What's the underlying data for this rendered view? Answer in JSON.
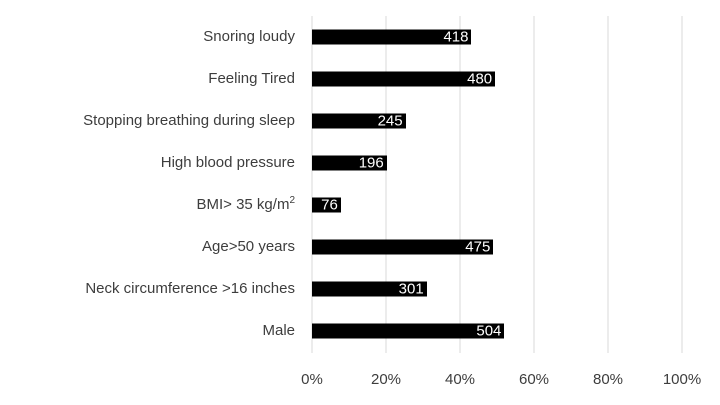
{
  "chart_data": {
    "type": "bar",
    "orientation": "horizontal",
    "title": "",
    "xlabel": "",
    "ylabel": "",
    "xlim": [
      0,
      100
    ],
    "grid": true,
    "legend": false,
    "x_ticks": [
      {
        "label": "0%",
        "value": 0
      },
      {
        "label": "20%",
        "value": 20
      },
      {
        "label": "40%",
        "value": 40
      },
      {
        "label": "60%",
        "value": 60
      },
      {
        "label": "80%",
        "value": 80
      },
      {
        "label": "100%",
        "value": 100
      }
    ],
    "rows": [
      {
        "label": "Snoring loudy",
        "label_sup": "",
        "value": "418",
        "percent": 43.1
      },
      {
        "label": "Feeling Tired",
        "label_sup": "",
        "value": "480",
        "percent": 49.5
      },
      {
        "label": "Stopping breathing during sleep",
        "label_sup": "",
        "value": "245",
        "percent": 25.3
      },
      {
        "label": "High blood pressure",
        "label_sup": "",
        "value": "196",
        "percent": 20.2
      },
      {
        "label": "BMI> 35 kg/m",
        "label_sup": "2",
        "value": "76",
        "percent": 7.8
      },
      {
        "label": "Age>50 years",
        "label_sup": "",
        "value": "475",
        "percent": 49.0
      },
      {
        "label": "Neck circumference >16 inches",
        "label_sup": "",
        "value": "301",
        "percent": 31.0
      },
      {
        "label": "Male",
        "label_sup": "",
        "value": "504",
        "percent": 52.0
      }
    ],
    "colors": {
      "bar": "#000000",
      "value_label": "#ffffff",
      "gridline": "#d9d9d9",
      "category_text": "#3d3d3d",
      "axis_text": "#3d3d3d",
      "background": "#ffffff"
    }
  }
}
